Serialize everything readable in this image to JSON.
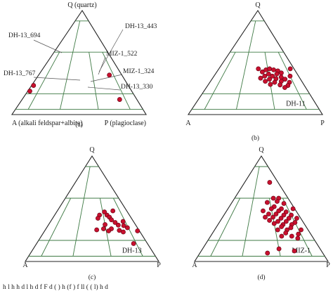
{
  "chart_data": [
    {
      "type": "scatter",
      "panel_label": "(a)",
      "vertex_labels": {
        "top": "Q (quartz)",
        "left": "A (alkali feldspar+albite)",
        "right": "P (plagioclase)"
      },
      "annotations": [
        "DH-13_694",
        "DH-13_443",
        "MIZ-1_522",
        "DH-13_767",
        "MIZ-1_324",
        "DH-13_330"
      ],
      "points": [
        [
          0.7,
          0.38,
          0.0
        ],
        [
          -1.0,
          0.28,
          0.0
        ],
        [
          -1.0,
          0.225,
          0.0
        ],
        [
          0.7,
          0.145,
          0.0
        ]
      ]
    },
    {
      "type": "scatter",
      "panel_label": "(b)",
      "vertex_labels": {
        "top": "Q",
        "left": "A",
        "right": "P"
      },
      "series_label": "DH-11",
      "points": [
        [
          0.15,
          0.41,
          0.0
        ],
        [
          0.25,
          0.43,
          0.0
        ],
        [
          0.35,
          0.44,
          0.0
        ],
        [
          0.45,
          0.43,
          0.0
        ],
        [
          0.55,
          0.42,
          0.0
        ],
        [
          0.3,
          0.39,
          0.0
        ],
        [
          0.5,
          0.39,
          0.0
        ],
        [
          0.62,
          0.4,
          0.0
        ],
        [
          0.2,
          0.37,
          0.0
        ],
        [
          0.38,
          0.37,
          0.0
        ],
        [
          0.58,
          0.36,
          0.0
        ],
        [
          0.8,
          0.37,
          0.0
        ],
        [
          0.1,
          0.35,
          0.0
        ],
        [
          0.3,
          0.34,
          0.0
        ],
        [
          0.45,
          0.345,
          0.0
        ],
        [
          0.65,
          0.34,
          0.0
        ],
        [
          0.2,
          0.32,
          0.0
        ],
        [
          0.4,
          0.31,
          0.0
        ],
        [
          0.55,
          0.32,
          0.0
        ],
        [
          0.72,
          0.31,
          0.0
        ],
        [
          0.3,
          0.29,
          0.0
        ],
        [
          0.5,
          0.285,
          0.0
        ],
        [
          0.66,
          0.28,
          0.0
        ],
        [
          0.58,
          0.26,
          0.0
        ],
        [
          0.05,
          0.44,
          0.0
        ],
        [
          0.9,
          0.44,
          0.0
        ]
      ]
    },
    {
      "type": "scatter",
      "panel_label": "(c)",
      "vertex_labels": {
        "top": "Q",
        "left": "A",
        "right": "P"
      },
      "series_label": "DH-13",
      "points": [
        [
          0.35,
          0.47,
          0.0
        ],
        [
          0.6,
          0.48,
          0.0
        ],
        [
          0.2,
          0.44,
          0.0
        ],
        [
          0.4,
          0.44,
          0.0
        ],
        [
          0.15,
          0.41,
          0.0
        ],
        [
          0.45,
          0.42,
          0.0
        ],
        [
          0.75,
          0.38,
          0.0
        ],
        [
          0.48,
          0.395,
          0.0
        ],
        [
          0.55,
          0.37,
          0.0
        ],
        [
          0.3,
          0.35,
          0.0
        ],
        [
          0.6,
          0.345,
          0.0
        ],
        [
          0.72,
          0.34,
          0.0
        ],
        [
          0.78,
          0.32,
          0.0
        ],
        [
          0.25,
          0.31,
          0.0
        ],
        [
          0.42,
          0.31,
          0.0
        ],
        [
          0.1,
          0.3,
          0.0
        ],
        [
          0.35,
          0.29,
          0.0
        ],
        [
          0.58,
          0.295,
          0.0
        ],
        [
          0.65,
          0.28,
          0.0
        ],
        [
          1.0,
          0.29,
          0.0
        ],
        [
          0.75,
          0.17,
          0.0
        ]
      ]
    },
    {
      "type": "scatter",
      "panel_label": "(d)",
      "vertex_labels": {
        "top": "Q",
        "left": "A",
        "right": "P"
      },
      "series_label": "MIZ-1",
      "points": [
        [
          0.5,
          0.75,
          0.0
        ],
        [
          0.45,
          0.6,
          0.0
        ],
        [
          0.65,
          0.6,
          0.0
        ],
        [
          0.55,
          0.57,
          0.0
        ],
        [
          0.2,
          0.56,
          0.0
        ],
        [
          0.75,
          0.55,
          0.0
        ],
        [
          0.4,
          0.52,
          0.0
        ],
        [
          0.6,
          0.5,
          0.0
        ],
        [
          0.3,
          0.5,
          0.0
        ],
        [
          0.5,
          0.48,
          0.0
        ],
        [
          0.7,
          0.47,
          0.0
        ],
        [
          0.2,
          0.45,
          0.0
        ],
        [
          0.4,
          0.45,
          0.0
        ],
        [
          0.6,
          0.44,
          0.0
        ],
        [
          0.8,
          0.44,
          0.0
        ],
        [
          0.1,
          0.42,
          0.0
        ],
        [
          0.3,
          0.42,
          0.0
        ],
        [
          0.5,
          0.41,
          0.0
        ],
        [
          0.7,
          0.41,
          0.0
        ],
        [
          0.9,
          0.41,
          0.0
        ],
        [
          0.2,
          0.39,
          0.0
        ],
        [
          0.4,
          0.38,
          0.0
        ],
        [
          0.6,
          0.38,
          0.0
        ],
        [
          0.8,
          0.37,
          0.0
        ],
        [
          0.3,
          0.36,
          0.0
        ],
        [
          0.5,
          0.35,
          0.0
        ],
        [
          0.7,
          0.35,
          0.0
        ],
        [
          0.45,
          0.33,
          0.0
        ],
        [
          0.65,
          0.32,
          0.0
        ],
        [
          0.55,
          0.3,
          0.0
        ],
        [
          0.35,
          0.3,
          0.0
        ],
        [
          0.85,
          0.3,
          0.0
        ],
        [
          0.5,
          0.27,
          0.0
        ],
        [
          0.75,
          0.26,
          0.0
        ],
        [
          0.6,
          0.24,
          0.0
        ],
        [
          0.4,
          0.24,
          0.0
        ],
        [
          0.7,
          0.22,
          0.0
        ],
        [
          0.05,
          0.48,
          0.0
        ],
        [
          0.95,
          0.5,
          0.0
        ],
        [
          0.3,
          0.12,
          0.0
        ],
        [
          0.55,
          0.1,
          0.0
        ],
        [
          0.1,
          0.08,
          0.0
        ]
      ]
    }
  ],
  "caption_fragment": "h         l    h         h        d                      l        h         d              f              F  d             (          )  h   (f    )  f  ll     ( ( l)  h         d"
}
